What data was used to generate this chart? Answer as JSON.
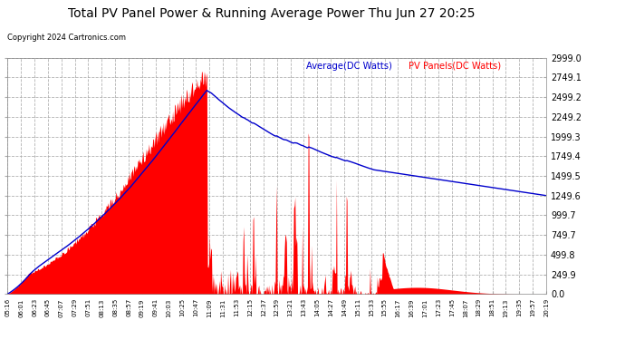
{
  "title": "Total PV Panel Power & Running Average Power Thu Jun 27 20:25",
  "copyright": "Copyright 2024 Cartronics.com",
  "legend_avg": "Average(DC Watts)",
  "legend_pv": "PV Panels(DC Watts)",
  "yticks": [
    0.0,
    249.9,
    499.8,
    749.7,
    999.7,
    1249.6,
    1499.5,
    1749.4,
    1999.3,
    2249.2,
    2499.2,
    2749.1,
    2999.0
  ],
  "ymax": 2999.0,
  "ymin": 0.0,
  "bg_color": "#ffffff",
  "plot_bg_color": "#ffffff",
  "fill_color": "#ff0000",
  "avg_color": "#0000cc",
  "grid_color": "#aaaaaa",
  "title_color": "#000000",
  "copyright_color": "#000000",
  "pv_label_color": "#ff0000",
  "avg_label_color": "#0000cc",
  "xtick_labels": [
    "05:16",
    "06:01",
    "06:23",
    "06:45",
    "07:07",
    "07:29",
    "07:51",
    "08:13",
    "08:35",
    "08:57",
    "09:19",
    "09:41",
    "10:03",
    "10:25",
    "10:47",
    "11:09",
    "11:31",
    "11:53",
    "12:15",
    "12:37",
    "12:59",
    "13:21",
    "13:43",
    "14:05",
    "14:27",
    "14:49",
    "15:11",
    "15:33",
    "15:55",
    "16:17",
    "16:39",
    "17:01",
    "17:23",
    "17:45",
    "18:07",
    "18:29",
    "18:51",
    "19:13",
    "19:35",
    "19:57",
    "20:19"
  ],
  "n_points": 820
}
